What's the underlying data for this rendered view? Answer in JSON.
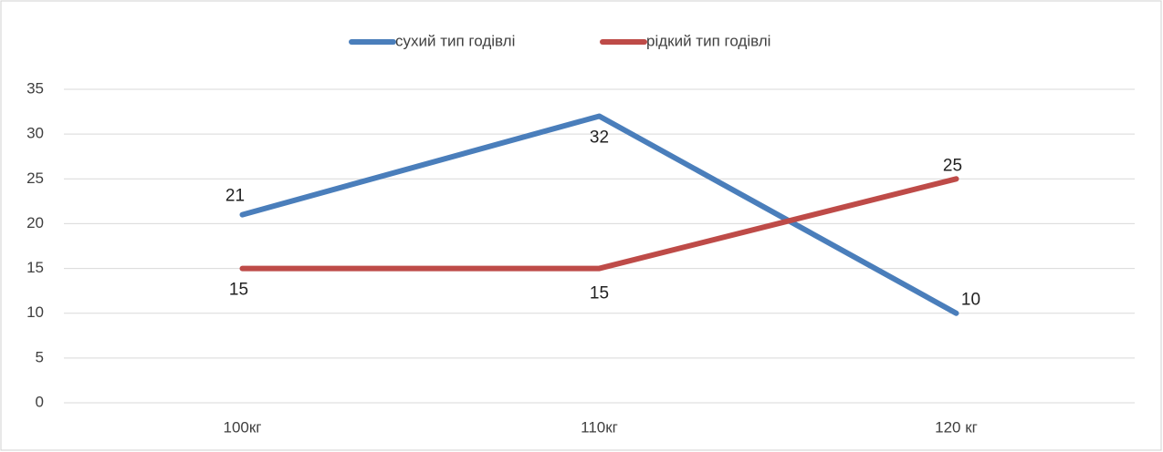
{
  "chart_data": {
    "type": "line",
    "categories": [
      "100кг",
      "110кг",
      "120 кг"
    ],
    "series": [
      {
        "name": "сухий тип годівлі",
        "color": "#4a7ebb",
        "values": [
          21,
          32,
          10
        ]
      },
      {
        "name": "рідкий тип годівлі",
        "color": "#be4b48",
        "values": [
          15,
          15,
          25
        ]
      }
    ],
    "ylim": [
      0,
      35
    ],
    "yticks": [
      0,
      5,
      10,
      15,
      20,
      25,
      30,
      35
    ],
    "grid": true,
    "legend": "top"
  }
}
